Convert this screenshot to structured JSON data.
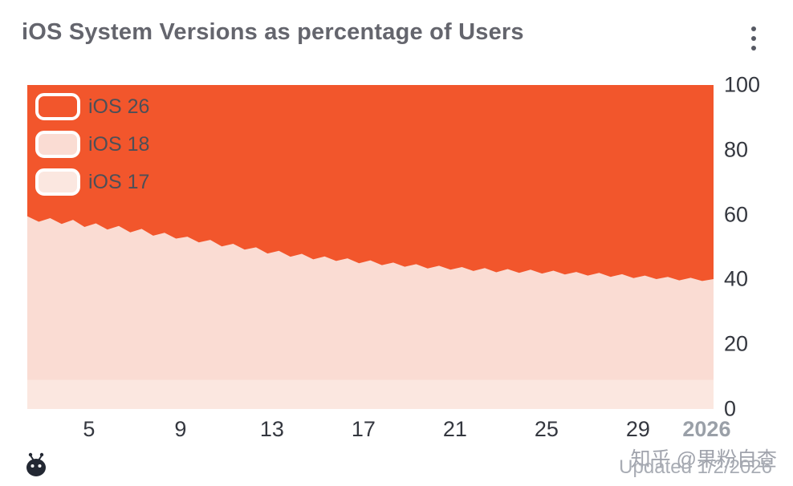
{
  "header": {
    "title": "iOS System Versions as percentage of Users"
  },
  "footer": {
    "updated": "Updated 1/2/2026",
    "watermark": "知乎 @果粉自查"
  },
  "chart_data": {
    "type": "area",
    "stacked": true,
    "title": "iOS System Versions as percentage of Users",
    "xlabel": "",
    "ylabel": "",
    "ylim": [
      0,
      100
    ],
    "y_ticks": [
      100,
      80,
      60,
      40,
      20,
      0
    ],
    "x_domain": [
      2.3,
      32.3
    ],
    "x_start": 2.3,
    "x_step": 0.5,
    "x_ticks": [
      {
        "v": 5,
        "label": "5"
      },
      {
        "v": 9,
        "label": "9"
      },
      {
        "v": 13,
        "label": "13"
      },
      {
        "v": 17,
        "label": "17"
      },
      {
        "v": 21,
        "label": "21"
      },
      {
        "v": 25,
        "label": "25"
      },
      {
        "v": 29,
        "label": "29"
      },
      {
        "v": 32,
        "label": "2026",
        "muted": true
      }
    ],
    "grid": false,
    "legend_position": "top-left",
    "series": [
      {
        "name": "iOS 26",
        "color": "#f2562c",
        "top": 100
      },
      {
        "name": "iOS 18",
        "color": "#fadcd3",
        "top": "ios17_18_total"
      },
      {
        "name": "iOS 17",
        "color": "#fbe7e0",
        "top": 9
      }
    ],
    "ios17_18_total": [
      59.5,
      57.8,
      58.9,
      57.1,
      58.4,
      56.2,
      57.3,
      55.4,
      56.5,
      54.5,
      55.6,
      53.5,
      54.4,
      52.6,
      53.2,
      51.4,
      52.2,
      50.2,
      51.0,
      49.2,
      49.9,
      48.0,
      48.8,
      47.0,
      47.9,
      46.2,
      47.1,
      45.7,
      46.5,
      45.0,
      45.9,
      44.4,
      45.2,
      43.9,
      44.7,
      43.4,
      44.2,
      43.0,
      43.8,
      42.6,
      43.5,
      42.2,
      43.2,
      42.0,
      43.0,
      41.8,
      42.7,
      41.5,
      42.3,
      41.2,
      42.0,
      40.8,
      41.6,
      40.4,
      41.2,
      40.1,
      40.8,
      39.7,
      40.5,
      39.5,
      40.1
    ]
  }
}
